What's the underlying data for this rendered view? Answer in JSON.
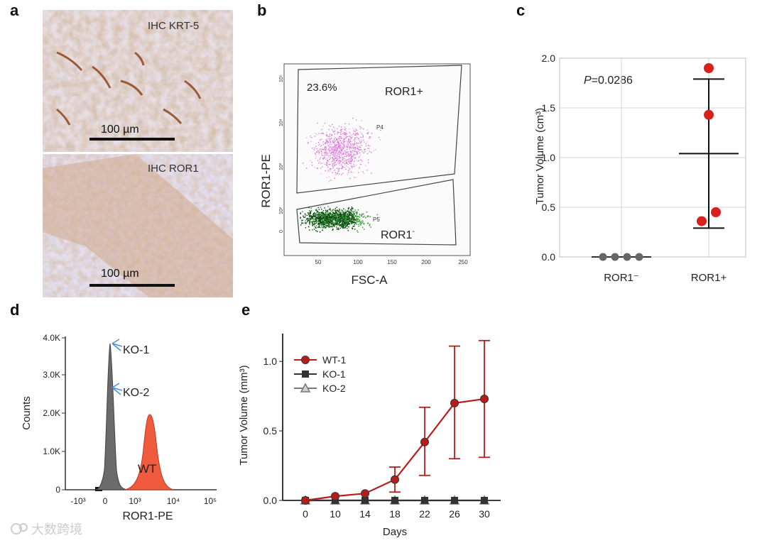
{
  "panels": {
    "a": {
      "letter": "a",
      "top_label": "IHC  KRT-5",
      "bottom_label": "IHC  ROR1",
      "scale_top": "100 µm",
      "scale_bottom": "100 µm"
    },
    "b": {
      "letter": "b",
      "percent": "23.6%",
      "gate_pos": "ROR1+",
      "gate_neg": "ROR1",
      "gate_neg_sup": "-",
      "p4": "P4",
      "p5": "P5",
      "ylabel": "ROR1-PE",
      "xlabel": "FSC-A",
      "x_ticks": [
        "50",
        "100",
        "150",
        "200",
        "250"
      ],
      "y_ticks": [
        "0",
        "10²",
        "10³",
        "10⁴",
        "10⁵"
      ]
    },
    "c": {
      "letter": "c",
      "pvalue_italic": "P",
      "pvalue_rest": "=0.0286",
      "ylabel": "Tumor Volume (cm³)"
    },
    "d": {
      "letter": "d",
      "ylabel": "Counts",
      "xlabel": "ROR1-PE",
      "ko1": "KO-1",
      "ko2": "KO-2",
      "wt": "WT",
      "y_ticks": [
        "0",
        "1.0K",
        "2.0K",
        "3.0K",
        "4.0K"
      ],
      "x_ticks": [
        "-10³",
        "0",
        "10³",
        "10⁴",
        "10⁵"
      ]
    },
    "e": {
      "letter": "e",
      "ylabel": "Tumor Volume (mm³)",
      "xlabel": "Days"
    }
  },
  "chart_data": [
    {
      "panel": "c",
      "type": "scatter",
      "categories": [
        "ROR1⁻",
        "ROR1+"
      ],
      "ylim": [
        0,
        2.0
      ],
      "y_ticks": [
        "0.0",
        "0.5",
        "1.0",
        "1.5",
        "2.0"
      ],
      "grid": true,
      "series": [
        {
          "category": "ROR1⁻",
          "values": [
            0,
            0,
            0,
            0
          ],
          "mean": 0,
          "sd": 0
        },
        {
          "category": "ROR1+",
          "values": [
            1.9,
            1.43,
            0.45,
            0.36
          ],
          "mean": 1.04,
          "sd_low": 0.29,
          "sd_high": 1.79
        }
      ],
      "colors": {
        "neg": "#666666",
        "pos": "#d9201b"
      }
    },
    {
      "panel": "e",
      "type": "line",
      "x": [
        0,
        10,
        14,
        18,
        22,
        26,
        30
      ],
      "ylim": [
        0,
        1.2
      ],
      "y_ticks": [
        "0.0",
        "0.5",
        "1.0"
      ],
      "x_ticks": [
        "0",
        "10",
        "14",
        "18",
        "22",
        "26",
        "30"
      ],
      "series": [
        {
          "name": "WT-1",
          "values": [
            0.0,
            0.03,
            0.05,
            0.15,
            0.42,
            0.7,
            0.73
          ],
          "err_low": [
            0.0,
            0.0,
            0.0,
            0.06,
            0.18,
            0.3,
            0.31
          ],
          "err_high": [
            0.0,
            0.0,
            0.0,
            0.24,
            0.67,
            1.11,
            1.15
          ],
          "color": "#b71c1c",
          "marker": "circle"
        },
        {
          "name": "KO-1",
          "values": [
            0,
            0,
            0,
            0,
            0,
            0,
            0
          ],
          "color": "#333333",
          "marker": "square"
        },
        {
          "name": "KO-2",
          "values": [
            0,
            0,
            0,
            0,
            0,
            0,
            0
          ],
          "color": "#777777",
          "marker": "triangle"
        }
      ]
    }
  ]
}
